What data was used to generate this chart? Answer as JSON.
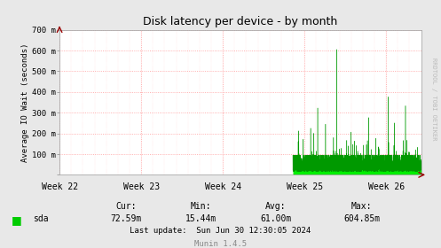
{
  "title": "Disk latency per device - by month",
  "ylabel": "Average IO Wait (seconds)",
  "ytick_labels": [
    "",
    "100 m",
    "200 m",
    "300 m",
    "400 m",
    "500 m",
    "600 m",
    "700 m"
  ],
  "ytick_values": [
    0,
    100,
    200,
    300,
    400,
    500,
    600,
    700
  ],
  "ylim": [
    0,
    700
  ],
  "week_labels": [
    "Week 22",
    "Week 23",
    "Week 24",
    "Week 25",
    "Week 26"
  ],
  "week_positions": [
    0,
    168,
    336,
    504,
    672
  ],
  "xlim": [
    0,
    744
  ],
  "bg_color": "#e8e8e8",
  "plot_bg_color": "#ffffff",
  "grid_color": "#ff9999",
  "title_color": "#000000",
  "line_color": "#00ff00",
  "legend_label": "sda",
  "legend_color": "#00cc00",
  "cur_label": "Cur:",
  "cur_value": "72.59m",
  "min_label": "Min:",
  "min_value": "15.44m",
  "avg_label": "Avg:",
  "avg_value": "61.00m",
  "max_label": "Max:",
  "max_value": "604.85m",
  "last_update": "Last update:  Sun Jun 30 12:30:05 2024",
  "munin_version": "Munin 1.4.5",
  "watermark": "RRDTOOL / TOBI OETIKER",
  "noise_start_week": 480,
  "noise_end_week": 744
}
